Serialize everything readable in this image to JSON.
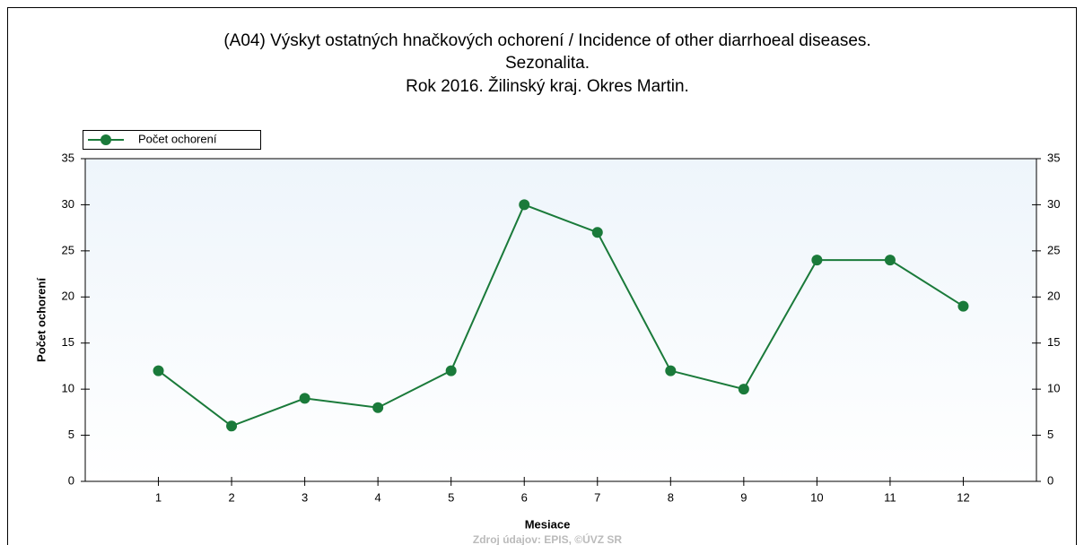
{
  "chart_data": {
    "type": "line",
    "title": [
      "(A04) Výskyt ostatných hnačkových ochorení / Incidence of other diarrhoeal diseases.",
      "Sezonalita.",
      "Rok 2016. Žilinský kraj. Okres Martin."
    ],
    "x_label": "Mesiace",
    "y_label": "Počet ochorení",
    "source": "Zdroj údajov: EPIS, ©ÚVZ SR",
    "categories": [
      "1",
      "2",
      "3",
      "4",
      "5",
      "6",
      "7",
      "8",
      "9",
      "10",
      "11",
      "12"
    ],
    "series": [
      {
        "name": "Počet ochorení",
        "color": "#1a7a3a",
        "values": [
          12,
          6,
          9,
          8,
          12,
          30,
          27,
          12,
          10,
          24,
          24,
          19
        ]
      }
    ],
    "ylim": [
      0,
      35
    ],
    "yticks": [
      0,
      5,
      10,
      15,
      20,
      25,
      30,
      35
    ],
    "y2lim": [
      0,
      35
    ],
    "y2ticks": [
      0,
      5,
      10,
      15,
      20,
      25,
      30,
      35
    ],
    "legend": "top-left"
  }
}
